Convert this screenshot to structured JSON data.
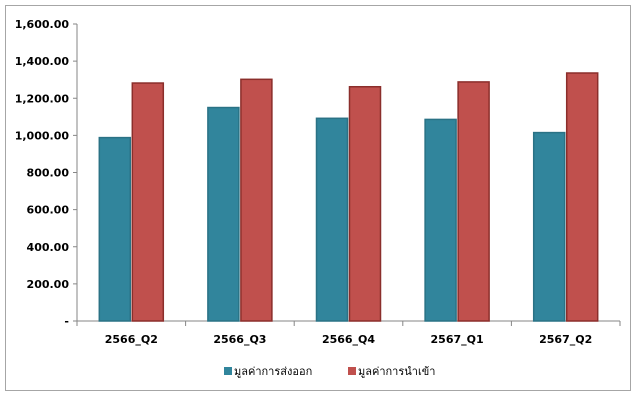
{
  "chart_data": {
    "type": "bar",
    "categories": [
      "2566_Q2",
      "2566_Q3",
      "2566_Q4",
      "2567_Q1",
      "2567_Q2"
    ],
    "series": [
      {
        "name": "มูลค่าการส่งออก",
        "values": [
          988,
          1150,
          1092,
          1086,
          1015
        ],
        "color": "#31859C"
      },
      {
        "name": "มูลค่าการนำเข้า",
        "values": [
          1282,
          1302,
          1262,
          1288,
          1336
        ],
        "color": "#C0504D"
      }
    ],
    "ylim": [
      0,
      1600
    ],
    "yticks": [
      0,
      200,
      400,
      600,
      800,
      1000,
      1200,
      1400,
      1600
    ],
    "ytick_labels": [
      "-",
      "200.00",
      "400.00",
      "600.00",
      "800.00",
      "1,000.00",
      "1,200.00",
      "1,400.00",
      "1,600.00"
    ],
    "legend": "bottom",
    "grid": false
  }
}
